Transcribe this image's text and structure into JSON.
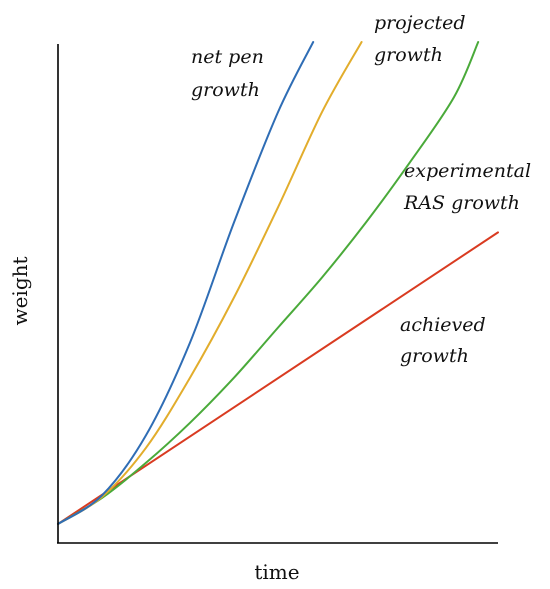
{
  "chart_data": {
    "type": "line",
    "xlabel": "time",
    "ylabel": "weight",
    "x_ticks": "none",
    "y_ticks": "none",
    "grid": false,
    "legend": "none (series labelled directly beside curves)",
    "series": [
      {
        "key": "net_pen",
        "label_lines": [
          "net pen",
          "growth"
        ],
        "color": "#2f6db5",
        "x": [
          0,
          0.1,
          0.2,
          0.3,
          0.4,
          0.5,
          0.58
        ],
        "y": [
          0.038,
          0.095,
          0.215,
          0.4,
          0.64,
          0.86,
          1.0
        ]
      },
      {
        "key": "projected",
        "label_lines": [
          "projected",
          "growth"
        ],
        "color": "#e2ad2c",
        "x": [
          0,
          0.1,
          0.2,
          0.3,
          0.4,
          0.5,
          0.6,
          0.69
        ],
        "y": [
          0.038,
          0.092,
          0.19,
          0.33,
          0.49,
          0.67,
          0.86,
          1.0
        ]
      },
      {
        "key": "experimental_ras",
        "label_lines": [
          "experimental",
          "RAS growth"
        ],
        "color": "#4aaa3a",
        "x": [
          0,
          0.1,
          0.2,
          0.3,
          0.4,
          0.5,
          0.6,
          0.7,
          0.8,
          0.9,
          0.955
        ],
        "y": [
          0.038,
          0.09,
          0.16,
          0.24,
          0.33,
          0.43,
          0.53,
          0.64,
          0.76,
          0.89,
          1.0
        ]
      },
      {
        "key": "achieved",
        "label_lines": [
          "achieved",
          "growth"
        ],
        "color": "#d93b21",
        "x": [
          0,
          1.0
        ],
        "y": [
          0.038,
          0.62
        ]
      }
    ]
  }
}
